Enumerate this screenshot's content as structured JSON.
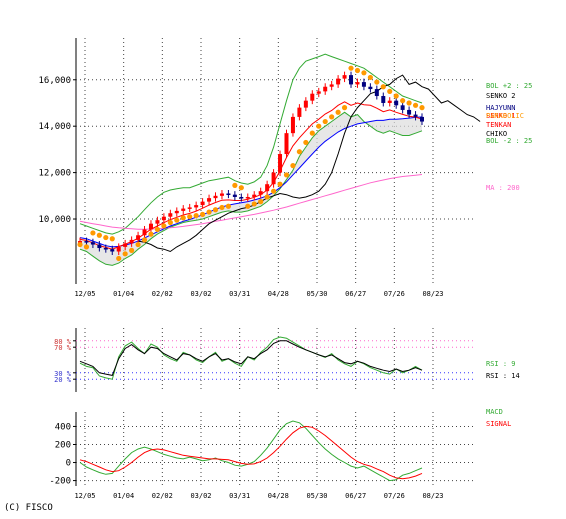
{
  "copyright": "(C) FISCO",
  "colors": {
    "price_line": "#000000",
    "candle_up": "#ff0000",
    "candle_down": "#000080",
    "ma_short": "#ff0000",
    "ma_mid": "#0000ff",
    "ma200": "#ff66cc",
    "bollinger": "#33aa33",
    "kumo_fill": "#dddddd",
    "parabolic": "#ff9900",
    "rsi9": "#33aa33",
    "rsi14": "#000000",
    "macd": "#33aa33",
    "signal": "#ff0000",
    "grid": "#444444",
    "rsi_overbought": "#ff66cc",
    "rsi_oversold": "#3333ff"
  },
  "x_ticks": [
    "12/05",
    "01/04",
    "02/02",
    "03/02",
    "03/31",
    "04/28",
    "05/30",
    "06/27",
    "07/26",
    "08/23"
  ],
  "chart_data": [
    {
      "type": "line",
      "name": "price",
      "y_ticks": [
        "16,000",
        "14,000",
        "12,000",
        "10,000"
      ],
      "ylim": [
        7200,
        17800
      ],
      "legend": [
        {
          "label": "BOL +2 : 25",
          "color": "#33aa33"
        },
        {
          "label": "SENKO 2",
          "color": "#000000"
        },
        {
          "label": "HAJYUNN",
          "color": "#000080"
        },
        {
          "label": "SENKO 1",
          "color": "#ff0000"
        },
        {
          "label": "PARABOLIC",
          "color": "#ff9900"
        },
        {
          "label": "TENKAN",
          "color": "#ff0000"
        },
        {
          "label": "CHIKO",
          "color": "#000000"
        },
        {
          "label": "BOL -2 : 25",
          "color": "#33aa33"
        },
        {
          "label": "MA : 200",
          "color": "#ff66cc"
        }
      ],
      "series": {
        "close": [
          9050,
          9000,
          8900,
          8750,
          8700,
          8600,
          8800,
          8950,
          9100,
          9300,
          9550,
          9800,
          9950,
          10100,
          10250,
          10350,
          10450,
          10500,
          10600,
          10750,
          10900,
          11000,
          11100,
          11050,
          10950,
          10900,
          10950,
          11050,
          11200,
          11500,
          12000,
          12800,
          13700,
          14400,
          14800,
          15100,
          15400,
          15500,
          15700,
          15800,
          16050,
          16200,
          15800,
          15900,
          15700,
          15600,
          15300,
          15000,
          15100,
          14900,
          14700,
          14500,
          14400,
          14200
        ],
        "ma200": [
          9900,
          9850,
          9800,
          9750,
          9700,
          9650,
          9620,
          9600,
          9580,
          9560,
          9560,
          9570,
          9580,
          9600,
          9620,
          9650,
          9680,
          9720,
          9760,
          9800,
          9850,
          9900,
          9950,
          10000,
          10050,
          10100,
          10150,
          10200,
          10260,
          10320,
          10380,
          10450,
          10520,
          10600,
          10680,
          10760,
          10840,
          10920,
          11000,
          11080,
          11160,
          11240,
          11320,
          11400,
          11480,
          11560,
          11620,
          11680,
          11740,
          11790,
          11830,
          11860,
          11890,
          11920
        ],
        "ma_mid": [
          9200,
          9150,
          9050,
          8950,
          8850,
          8800,
          8820,
          8880,
          8950,
          9050,
          9180,
          9320,
          9450,
          9580,
          9700,
          9800,
          9900,
          9980,
          10080,
          10180,
          10300,
          10420,
          10520,
          10600,
          10650,
          10700,
          10750,
          10820,
          10900,
          11000,
          11150,
          11350,
          11600,
          11900,
          12200,
          12500,
          12800,
          13100,
          13350,
          13550,
          13750,
          13900,
          14000,
          14100,
          14150,
          14200,
          14250,
          14250,
          14300,
          14300,
          14320,
          14350,
          14380,
          14400
        ],
        "bol_upper": [
          9800,
          9700,
          9600,
          9500,
          9400,
          9350,
          9450,
          9600,
          9850,
          10100,
          10400,
          10700,
          10950,
          11150,
          11250,
          11300,
          11350,
          11350,
          11450,
          11550,
          11650,
          11700,
          11750,
          11800,
          11650,
          11550,
          11500,
          11600,
          11800,
          12300,
          13100,
          14100,
          15100,
          16000,
          16500,
          16800,
          16900,
          17000,
          17100,
          17000,
          16900,
          16800,
          16700,
          16600,
          16500,
          16300,
          16100,
          15900,
          15700,
          15500,
          15300,
          15200,
          15100,
          15000
        ],
        "bol_lower": [
          8700,
          8600,
          8400,
          8200,
          8050,
          8000,
          8100,
          8300,
          8450,
          8700,
          8900,
          9150,
          9350,
          9500,
          9650,
          9750,
          9850,
          9900,
          9950,
          10000,
          10100,
          10200,
          10300,
          10350,
          10300,
          10300,
          10350,
          10450,
          10550,
          10750,
          11000,
          11300,
          11700,
          12100,
          12700,
          13100,
          13500,
          13800,
          14000,
          14200,
          14400,
          14600,
          14400,
          14500,
          14200,
          14000,
          13800,
          13700,
          13800,
          13700,
          13600,
          13600,
          13700,
          13800
        ]
      }
    },
    {
      "type": "line",
      "name": "rsi",
      "y_ticks": [
        "80 %",
        "70 %",
        "30 %",
        "20 %"
      ],
      "ylim": [
        0,
        100
      ],
      "legend": [
        {
          "label": "RSI : 9",
          "color": "#33aa33"
        },
        {
          "label": "RSI : 14",
          "color": "#000000"
        }
      ],
      "series": [
        {
          "name": "RSI : 9",
          "values": [
            45,
            40,
            38,
            25,
            22,
            20,
            55,
            72,
            78,
            68,
            60,
            75,
            70,
            58,
            52,
            48,
            62,
            58,
            50,
            46,
            55,
            62,
            48,
            52,
            45,
            40,
            55,
            50,
            62,
            70,
            82,
            86,
            84,
            78,
            72,
            66,
            62,
            58,
            54,
            60,
            50,
            44,
            40,
            48,
            44,
            38,
            34,
            30,
            28,
            36,
            30,
            34,
            40,
            34
          ]
        },
        {
          "name": "RSI : 14",
          "values": [
            48,
            44,
            40,
            30,
            28,
            26,
            52,
            68,
            74,
            66,
            60,
            70,
            68,
            60,
            55,
            50,
            60,
            58,
            52,
            48,
            55,
            60,
            50,
            52,
            47,
            44,
            55,
            52,
            60,
            66,
            76,
            80,
            80,
            75,
            70,
            66,
            62,
            58,
            55,
            58,
            52,
            46,
            44,
            48,
            45,
            40,
            37,
            34,
            32,
            36,
            32,
            34,
            38,
            34
          ]
        }
      ]
    },
    {
      "type": "line",
      "name": "macd",
      "y_ticks": [
        "400",
        "200",
        "0",
        "-200"
      ],
      "ylim": [
        -260,
        560
      ],
      "legend": [
        {
          "label": "MACD",
          "color": "#33aa33"
        },
        {
          "label": "SIGNAL",
          "color": "#ff0000"
        }
      ],
      "series": [
        {
          "name": "MACD",
          "values": [
            0,
            -50,
            -80,
            -110,
            -130,
            -120,
            -40,
            40,
            110,
            150,
            170,
            150,
            120,
            90,
            70,
            50,
            40,
            60,
            40,
            20,
            30,
            50,
            20,
            0,
            -30,
            -40,
            -20,
            10,
            80,
            160,
            260,
            360,
            430,
            460,
            440,
            380,
            300,
            220,
            150,
            90,
            40,
            0,
            -40,
            -60,
            -40,
            -80,
            -120,
            -160,
            -200,
            -190,
            -140,
            -120,
            -90,
            -60
          ]
        },
        {
          "name": "SIGNAL",
          "values": [
            30,
            10,
            -20,
            -50,
            -80,
            -100,
            -90,
            -50,
            0,
            60,
            110,
            140,
            150,
            140,
            120,
            100,
            80,
            70,
            60,
            50,
            40,
            40,
            35,
            30,
            10,
            -10,
            -20,
            -15,
            10,
            50,
            110,
            180,
            260,
            330,
            380,
            400,
            390,
            350,
            300,
            240,
            180,
            120,
            60,
            10,
            -20,
            -40,
            -70,
            -100,
            -140,
            -170,
            -180,
            -170,
            -150,
            -120
          ]
        }
      ]
    }
  ]
}
